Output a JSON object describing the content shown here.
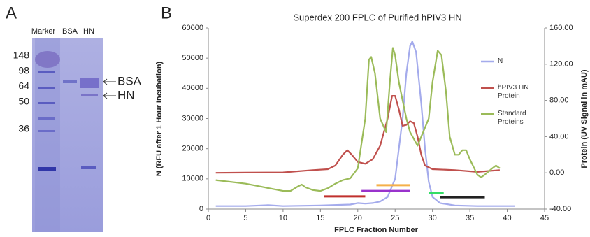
{
  "panel_a": {
    "label": "A",
    "lanes": [
      "Marker",
      "BSA",
      "HN"
    ],
    "markers": [
      148,
      98,
      64,
      50,
      36
    ],
    "band_labels": [
      "BSA",
      "HN"
    ]
  },
  "chart_data": {
    "type": "line",
    "panel_label": "B",
    "title": "Superdex 200 FPLC of Purified hPIV3 HN",
    "x_label": "FPLC Fraction Number",
    "y_label": "N (RFU after 1 Hour Incubation)",
    "y2_label": "Protein (UV Signal in mAU)",
    "xlim": [
      0,
      45
    ],
    "xticks": [
      0,
      5,
      10,
      15,
      20,
      25,
      30,
      35,
      40,
      45
    ],
    "ylim": [
      0,
      60000
    ],
    "yticks": [
      0,
      10000,
      20000,
      30000,
      40000,
      50000,
      60000
    ],
    "y2lim": [
      -40,
      160
    ],
    "y2ticks": [
      {
        "value": -40,
        "label": "-40.00"
      },
      {
        "value": 0,
        "label": "0.00"
      },
      {
        "value": 40,
        "label": "40.00"
      },
      {
        "value": 80,
        "label": "80.00"
      },
      {
        "value": 120,
        "label": "120.00"
      },
      {
        "value": 160,
        "label": "160.00"
      }
    ],
    "grid": false,
    "series": [
      {
        "name": "N",
        "color": "#a4abec",
        "x": [
          1,
          5,
          8,
          10,
          15,
          19,
          20,
          21,
          22,
          23,
          24,
          25,
          26,
          26.5,
          27,
          27.3,
          27.8,
          28.5,
          29,
          29.5,
          30,
          31,
          33,
          36,
          41
        ],
        "values": [
          1000,
          1000,
          1300,
          1000,
          1200,
          1500,
          2000,
          1800,
          2000,
          2500,
          4000,
          10000,
          30000,
          45000,
          54000,
          55500,
          52000,
          35000,
          20000,
          9000,
          4000,
          2000,
          1200,
          1000,
          1000
        ]
      },
      {
        "name": "hPIV3 HN Protein",
        "color": "#c0504d",
        "axis": "y2",
        "x": [
          1,
          5,
          10,
          14,
          16,
          17,
          18,
          18.6,
          19.2,
          20,
          21,
          22,
          23,
          24,
          24.6,
          25,
          25.5,
          26,
          26.5,
          27,
          27.5,
          28,
          28.5,
          29,
          30,
          33,
          36,
          39
        ],
        "values": [
          0,
          0.2,
          0.5,
          3,
          4,
          8,
          20,
          25,
          20,
          12,
          10,
          15,
          30,
          60,
          85,
          85,
          70,
          52,
          53,
          57,
          55,
          40,
          20,
          8,
          4,
          3,
          1,
          3
        ]
      },
      {
        "name": "Standard Proteins",
        "color": "#9bbb59",
        "axis": "y2",
        "x": [
          1,
          5,
          10,
          11,
          12,
          12.5,
          13,
          14,
          15,
          16,
          17,
          18,
          19,
          20,
          21,
          21.5,
          21.8,
          22.3,
          23,
          23.8,
          24.3,
          24.7,
          25,
          25.5,
          26,
          26.5,
          27,
          28,
          28.5,
          29,
          29.5,
          30,
          30.7,
          31.2,
          31.8,
          32.3,
          33,
          33.5,
          34,
          34.5,
          35,
          36,
          36.5,
          37,
          38,
          38.5,
          39
        ],
        "values": [
          -8,
          -12,
          -20,
          -20,
          -15,
          -13,
          -16,
          -19,
          -20,
          -17,
          -12,
          -8,
          -6,
          5,
          60,
          125,
          128,
          110,
          60,
          45,
          100,
          138,
          130,
          100,
          80,
          60,
          45,
          30,
          40,
          50,
          60,
          100,
          135,
          130,
          90,
          40,
          20,
          20,
          25,
          25,
          15,
          -2,
          -5,
          -2,
          5,
          8,
          5
        ]
      }
    ],
    "fraction_bars": [
      {
        "color": "#c0302d",
        "start": 15.5,
        "end": 21,
        "y": 4200
      },
      {
        "color": "#9933cc",
        "start": 20.5,
        "end": 27,
        "y": 6000
      },
      {
        "color": "#f5b04a",
        "start": 22.5,
        "end": 27,
        "y": 7900
      },
      {
        "color": "#33dd66",
        "start": 29.5,
        "end": 31.5,
        "y": 5300
      },
      {
        "color": "#222222",
        "start": 31,
        "end": 37,
        "y": 3900
      }
    ]
  }
}
